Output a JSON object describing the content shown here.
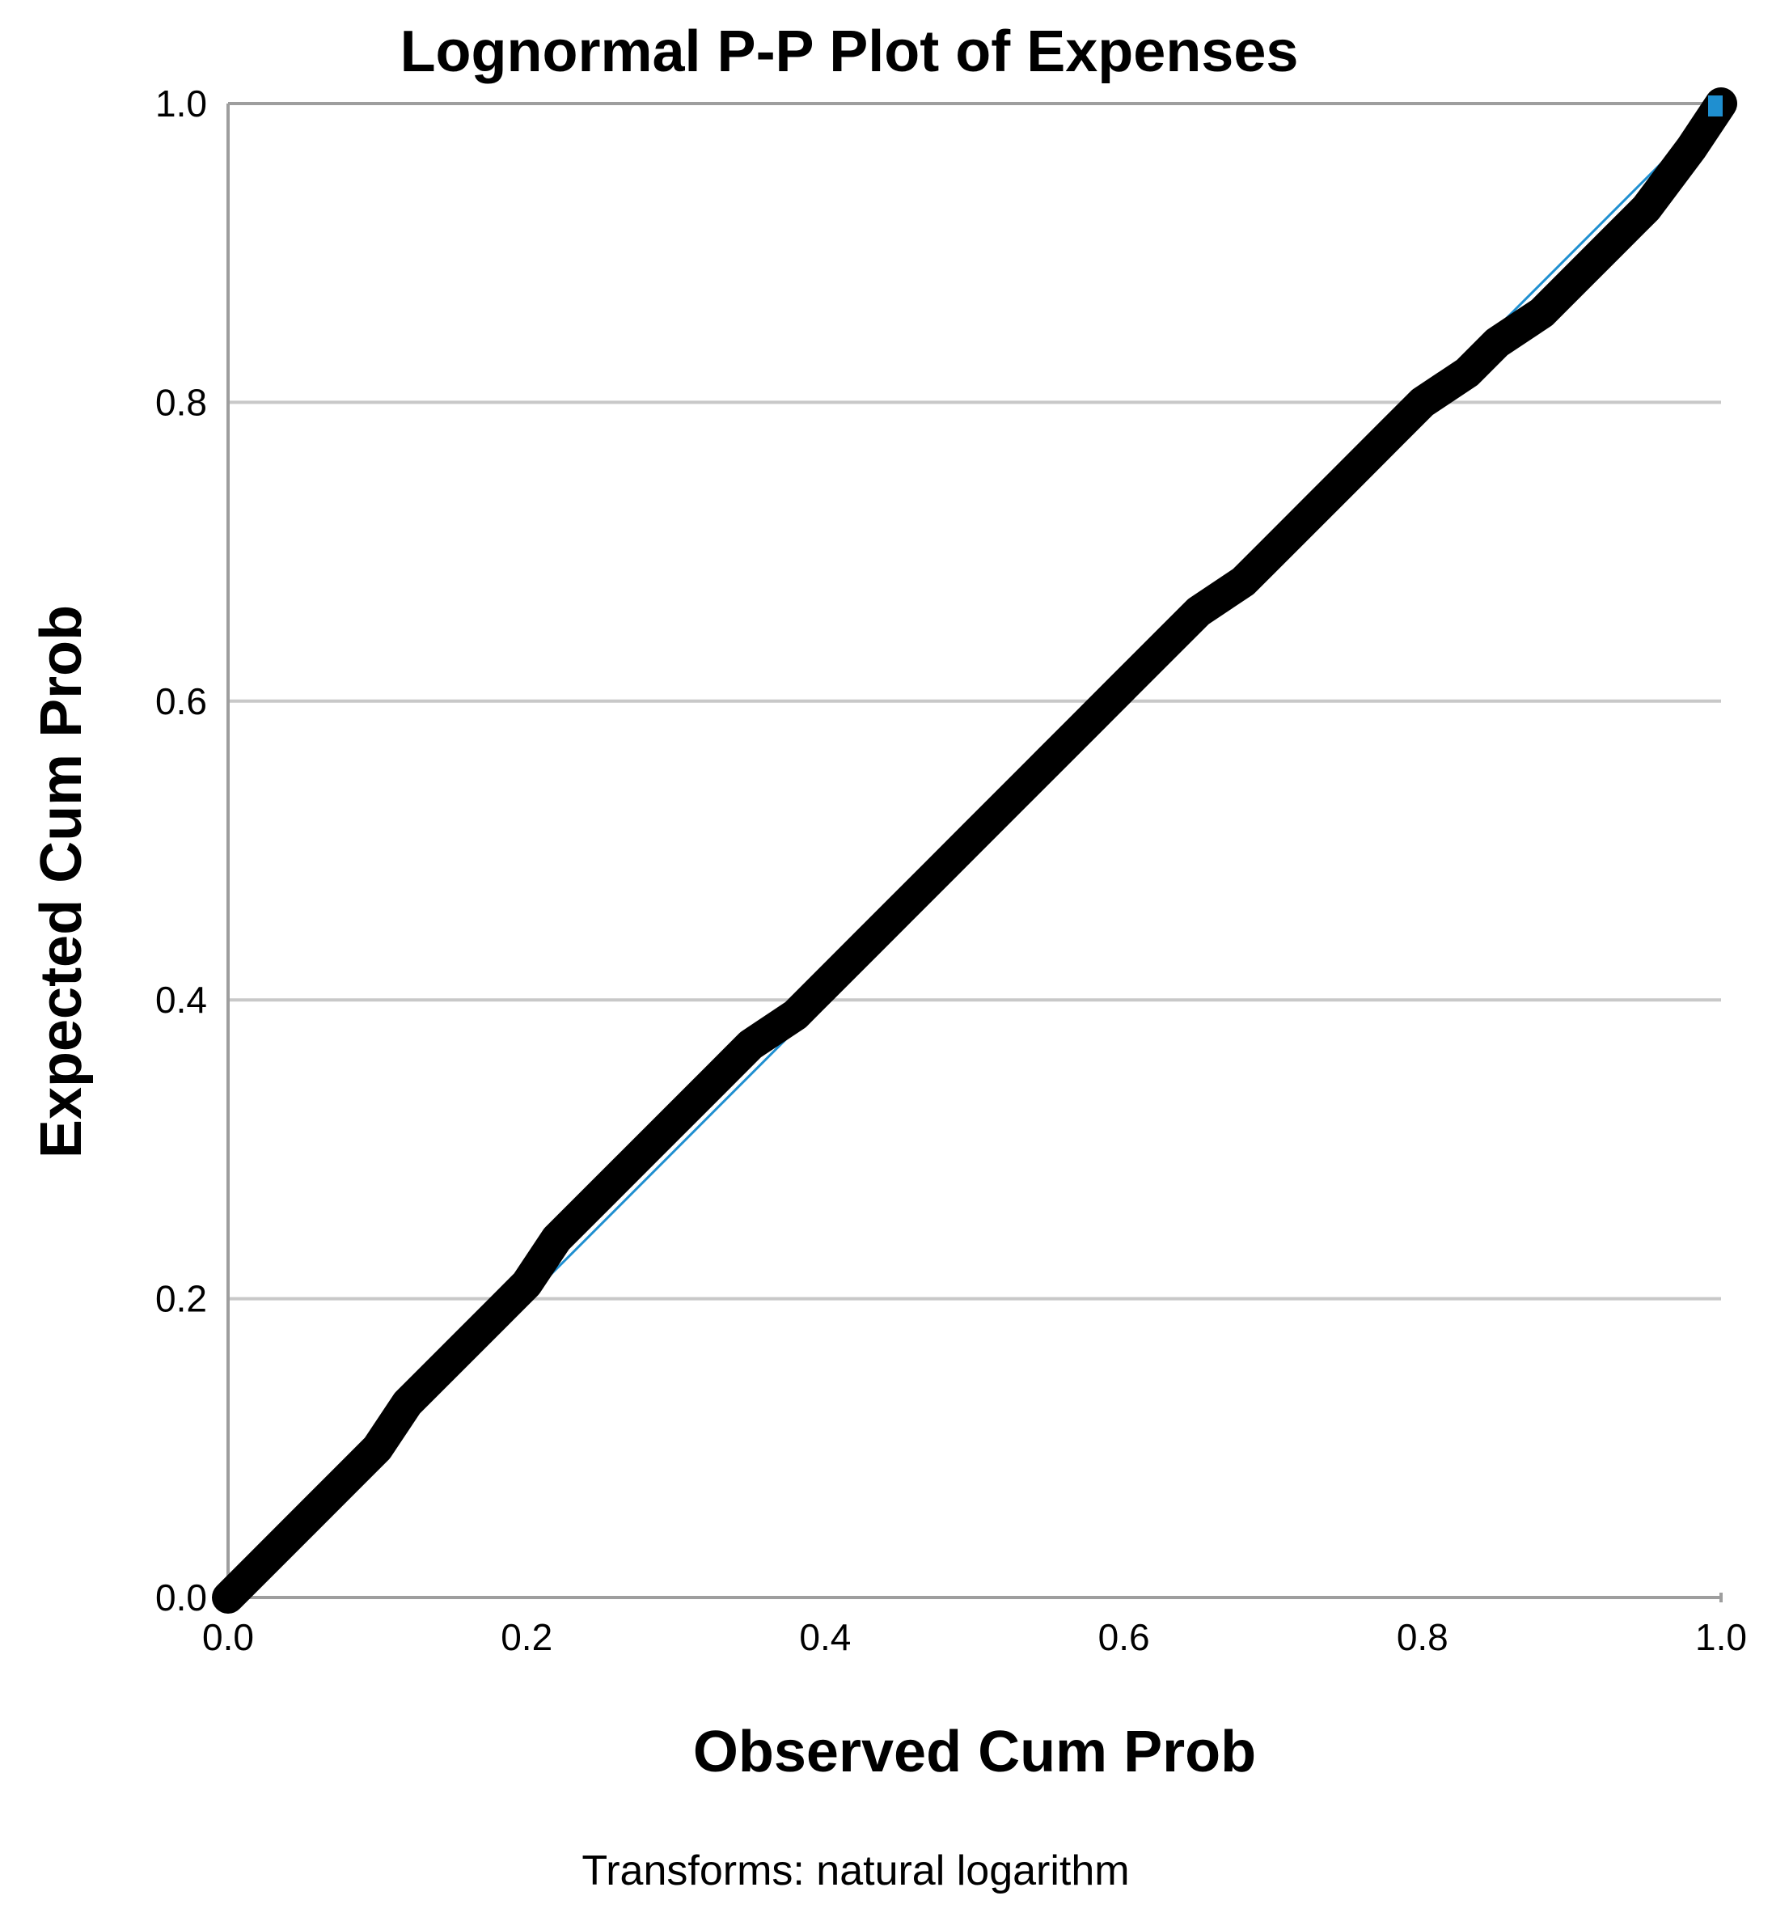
{
  "chart_data": {
    "type": "scatter",
    "title": "Lognormal P-P Plot of Expenses",
    "xlabel": "Observed Cum Prob",
    "ylabel": "Expected Cum Prob",
    "footnote": "Transforms: natural logarithm",
    "xlim": [
      0,
      1
    ],
    "ylim": [
      0,
      1
    ],
    "x_ticks": [
      "0.0",
      "0.2",
      "0.4",
      "0.6",
      "0.8",
      "1.0"
    ],
    "y_ticks": [
      "0.0",
      "0.2",
      "0.4",
      "0.6",
      "0.8",
      "1.0"
    ],
    "grid": "horizontal",
    "colors": {
      "points": "#000000",
      "reference_line": "#1f8fd0",
      "grid": "#c8c8c8",
      "axis": "#9e9e9e"
    },
    "reference_line": {
      "x": [
        0,
        1
      ],
      "y": [
        0,
        1
      ]
    },
    "series": [
      {
        "x": [
          0.0,
          0.02,
          0.05,
          0.08,
          0.1,
          0.12,
          0.15,
          0.18,
          0.2,
          0.22,
          0.25,
          0.28,
          0.3,
          0.33,
          0.35,
          0.38,
          0.4,
          0.43,
          0.45,
          0.48,
          0.5,
          0.53,
          0.55,
          0.58,
          0.6,
          0.63,
          0.65,
          0.68,
          0.7,
          0.73,
          0.75,
          0.78,
          0.8,
          0.83,
          0.85,
          0.88,
          0.9,
          0.93,
          0.95,
          0.98,
          1.0
        ],
        "y": [
          0.0,
          0.02,
          0.05,
          0.08,
          0.1,
          0.13,
          0.16,
          0.19,
          0.21,
          0.24,
          0.27,
          0.3,
          0.32,
          0.35,
          0.37,
          0.39,
          0.41,
          0.44,
          0.46,
          0.49,
          0.51,
          0.54,
          0.56,
          0.59,
          0.61,
          0.64,
          0.66,
          0.68,
          0.7,
          0.73,
          0.75,
          0.78,
          0.8,
          0.82,
          0.84,
          0.86,
          0.88,
          0.91,
          0.93,
          0.97,
          1.0
        ]
      }
    ]
  }
}
